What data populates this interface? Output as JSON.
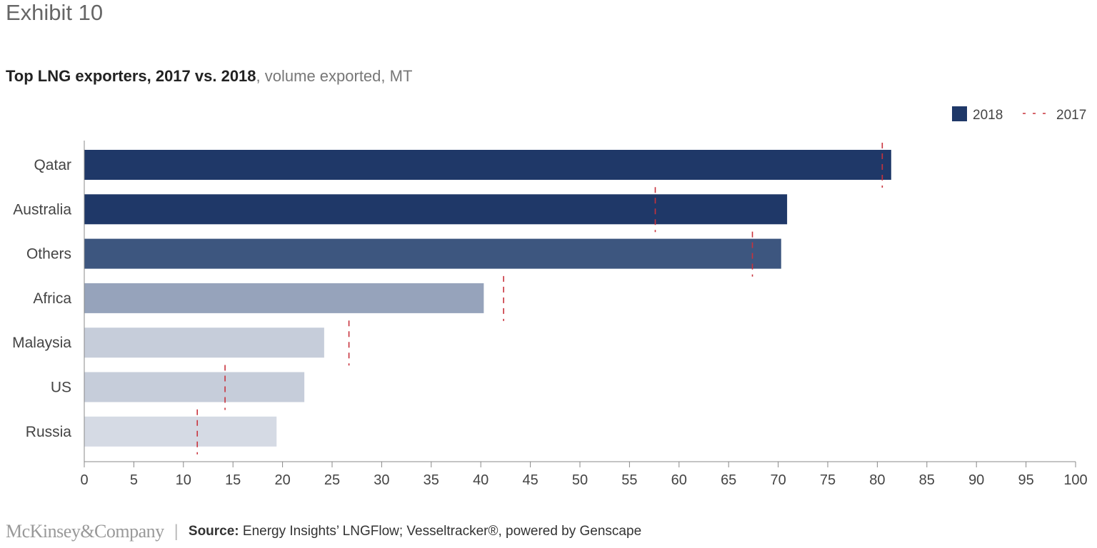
{
  "header": {
    "exhibit": "Exhibit 10"
  },
  "title": {
    "bold": "Top LNG exporters, 2017 vs. 2018",
    "sub": ", volume exported, MT"
  },
  "legend": {
    "series_2018": "2018",
    "series_2017": "2017"
  },
  "colors": {
    "marker_2017": "#c8323c",
    "axis": "#888888"
  },
  "chart_data": {
    "type": "bar",
    "orientation": "horizontal",
    "title": "Top LNG exporters, 2017 vs. 2018",
    "subtitle": "volume exported, MT",
    "xlabel": "",
    "ylabel": "",
    "xlim": [
      0,
      100
    ],
    "x_ticks": [
      0,
      5,
      10,
      15,
      20,
      25,
      30,
      35,
      40,
      45,
      50,
      55,
      60,
      65,
      70,
      75,
      80,
      85,
      90,
      95,
      100
    ],
    "grid": false,
    "legend_position": "top-right",
    "categories": [
      "Qatar",
      "Australia",
      "Others",
      "Africa",
      "Malaysia",
      "US",
      "Russia"
    ],
    "series": [
      {
        "name": "2018",
        "style": "bar",
        "values": [
          81.4,
          70.9,
          70.3,
          40.3,
          24.2,
          22.2,
          19.4
        ],
        "colors": [
          "#1f3868",
          "#1f3868",
          "#3d567f",
          "#96a3bb",
          "#c6cdda",
          "#c6cdda",
          "#d5dae4"
        ]
      },
      {
        "name": "2017",
        "style": "dashed-marker",
        "values": [
          80.5,
          57.6,
          67.4,
          42.3,
          26.7,
          14.2,
          11.4
        ]
      }
    ]
  },
  "footer": {
    "brand": "McKinsey&Company",
    "separator": "|",
    "source_label": "Source:",
    "source_text": " Energy Insights’ LNGFlow; Vesseltracker®, powered by Genscape"
  }
}
